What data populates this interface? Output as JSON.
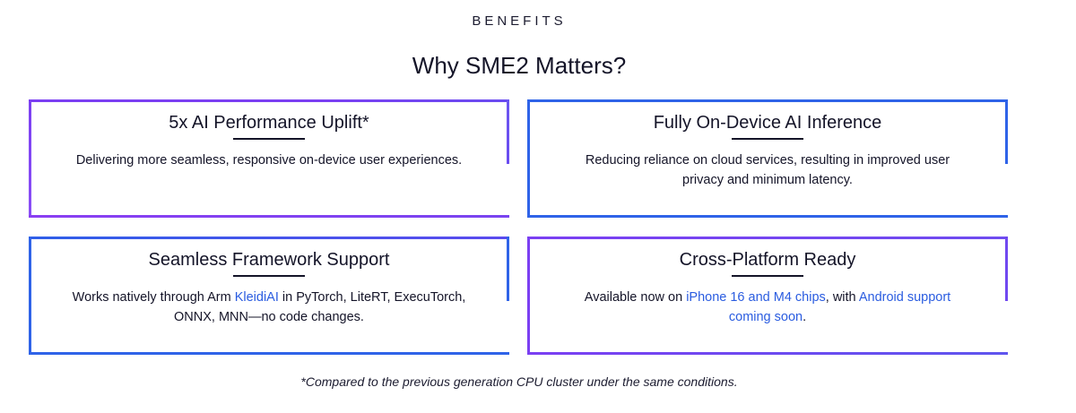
{
  "section": {
    "eyebrow": "BENEFITS",
    "title": "Why SME2 Matters?"
  },
  "cards": [
    {
      "title": "5x AI Performance Uplift*",
      "text": "Delivering more seamless, responsive on-device user experiences."
    },
    {
      "title": "Fully On-Device AI Inference",
      "text": "Reducing reliance on cloud services, resulting in improved user privacy and minimum latency."
    },
    {
      "title": "Seamless Framework Support",
      "text_before": "Works natively through Arm ",
      "link": "KleidiAI",
      "text_after": " in PyTorch, LiteRT, ExecuTorch, ONNX, MNN—no code changes."
    },
    {
      "title": "Cross-Platform Ready",
      "text_before": "Available now on ",
      "link1": "iPhone 16 and M4 chips",
      "text_middle": ", with ",
      "link2": "Android support coming soon",
      "text_after": "."
    }
  ],
  "footnote": "*Compared to the previous generation CPU cluster under the same conditions.",
  "colors": {
    "accent_blue": "#2f63e8",
    "accent_purple": "#7b3ff2",
    "link": "#2a5ce0",
    "text": "#141428"
  }
}
